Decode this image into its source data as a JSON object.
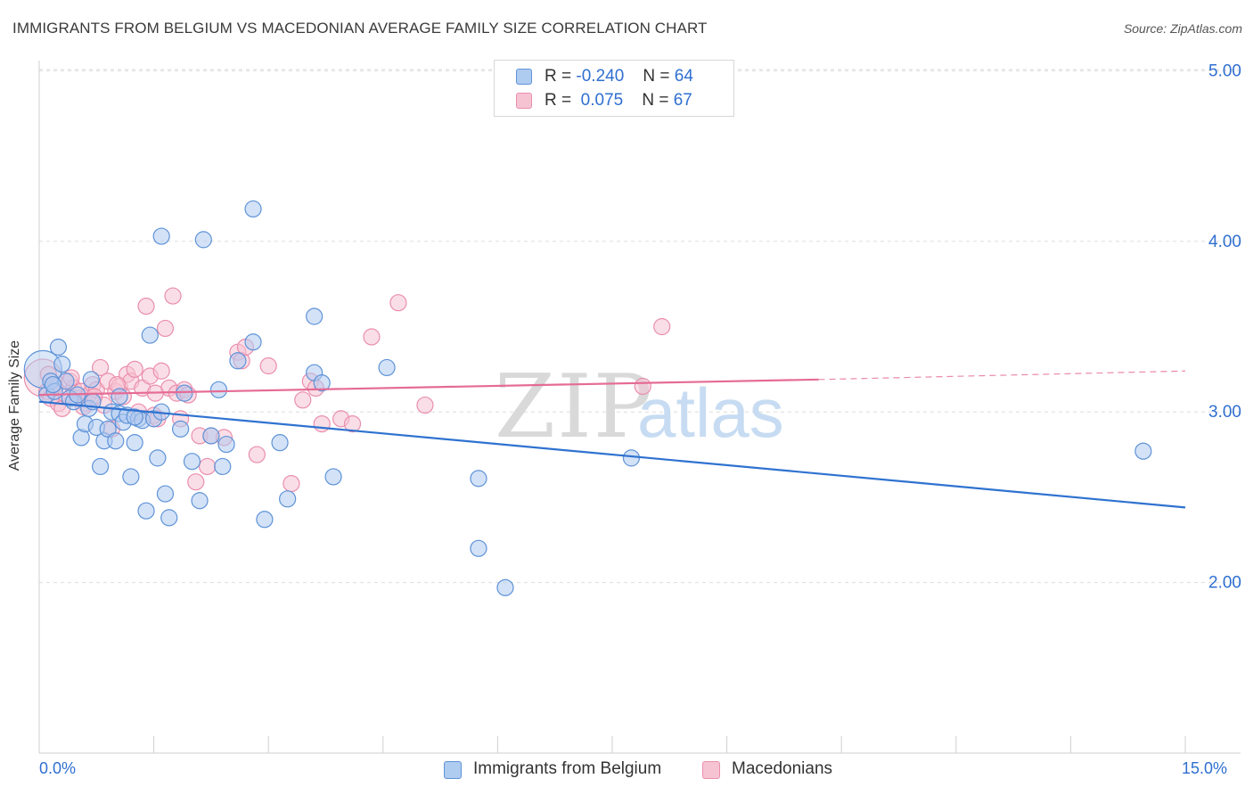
{
  "title": "IMMIGRANTS FROM BELGIUM VS MACEDONIAN AVERAGE FAMILY SIZE CORRELATION CHART",
  "source": "Source: ZipAtlas.com",
  "legend_top": {
    "rows": [
      {
        "r_label": "R =",
        "r_value": "-0.240",
        "n_label": "N =",
        "n_value": "64"
      },
      {
        "r_label": "R =",
        "r_value": " 0.075",
        "n_label": "N =",
        "n_value": "67"
      }
    ]
  },
  "legend_bottom": {
    "items": [
      {
        "label": "Immigrants from Belgium"
      },
      {
        "label": "Macedonians"
      }
    ]
  },
  "colors": {
    "blue_fill": "#aecbf0",
    "blue_stroke": "#5f93d8",
    "blue_line": "#2f72d0",
    "pink_fill": "#f6c3d3",
    "pink_stroke": "#ea8eac",
    "pink_line": "#e56b95",
    "axis_text": "#2f6fd0",
    "grid": "#dddddd"
  },
  "chart_data": {
    "type": "scatter",
    "title": "IMMIGRANTS FROM BELGIUM VS MACEDONIAN AVERAGE FAMILY SIZE CORRELATION CHART",
    "xlabel": "",
    "ylabel": "Average Family Size",
    "xlim": [
      0,
      15
    ],
    "ylim": [
      1.0,
      5.0
    ],
    "x_tick_labels": [
      "0.0%",
      "15.0%"
    ],
    "y_ticks": [
      2.0,
      3.0,
      4.0,
      5.0
    ],
    "y_tick_labels": [
      "2.00",
      "3.00",
      "4.00",
      "5.00"
    ],
    "grid": "horizontal dashed",
    "legend_position": "top-center",
    "series": [
      {
        "name": "Immigrants from Belgium",
        "color": "#5f93d8",
        "R": -0.24,
        "N": 64,
        "trend": {
          "x": [
            0.0,
            15.0
          ],
          "y": [
            3.06,
            2.44
          ]
        },
        "points": [
          [
            0.05,
            3.25
          ],
          [
            0.1,
            3.1
          ],
          [
            0.15,
            3.18
          ],
          [
            0.2,
            3.12
          ],
          [
            0.25,
            3.38
          ],
          [
            0.3,
            3.28
          ],
          [
            0.35,
            3.18
          ],
          [
            0.4,
            3.08
          ],
          [
            0.45,
            3.06
          ],
          [
            0.5,
            3.1
          ],
          [
            0.55,
            2.85
          ],
          [
            0.6,
            2.93
          ],
          [
            0.65,
            3.02
          ],
          [
            0.7,
            3.06
          ],
          [
            0.75,
            2.91
          ],
          [
            0.8,
            2.68
          ],
          [
            0.85,
            2.83
          ],
          [
            0.9,
            2.9
          ],
          [
            0.95,
            3.0
          ],
          [
            1.0,
            2.83
          ],
          [
            1.05,
            2.99
          ],
          [
            1.1,
            2.94
          ],
          [
            1.15,
            2.98
          ],
          [
            1.2,
            2.62
          ],
          [
            1.25,
            2.82
          ],
          [
            1.3,
            2.96
          ],
          [
            1.35,
            2.95
          ],
          [
            1.4,
            2.42
          ],
          [
            1.45,
            3.45
          ],
          [
            1.5,
            2.96
          ],
          [
            1.55,
            2.73
          ],
          [
            1.6,
            3.0
          ],
          [
            1.65,
            2.52
          ],
          [
            1.7,
            2.38
          ],
          [
            1.6,
            4.03
          ],
          [
            1.85,
            2.9
          ],
          [
            1.9,
            3.11
          ],
          [
            2.0,
            2.71
          ],
          [
            2.1,
            2.48
          ],
          [
            2.15,
            4.01
          ],
          [
            2.25,
            2.86
          ],
          [
            2.35,
            3.13
          ],
          [
            2.4,
            2.68
          ],
          [
            2.45,
            2.81
          ],
          [
            2.6,
            3.3
          ],
          [
            2.8,
            4.19
          ],
          [
            2.8,
            3.41
          ],
          [
            2.95,
            2.37
          ],
          [
            3.15,
            2.82
          ],
          [
            3.25,
            2.49
          ],
          [
            3.6,
            3.23
          ],
          [
            3.7,
            3.17
          ],
          [
            3.6,
            3.56
          ],
          [
            3.85,
            2.62
          ],
          [
            4.55,
            3.26
          ],
          [
            5.75,
            2.61
          ],
          [
            5.75,
            2.2
          ],
          [
            6.1,
            1.97
          ],
          [
            7.75,
            2.73
          ],
          [
            14.45,
            2.77
          ],
          [
            0.18,
            3.16
          ],
          [
            0.68,
            3.19
          ],
          [
            1.05,
            3.09
          ],
          [
            1.25,
            2.97
          ]
        ]
      },
      {
        "name": "Macedonians",
        "color": "#ea8eac",
        "R": 0.075,
        "N": 67,
        "trend": {
          "x": [
            0.0,
            10.2
          ],
          "y": [
            3.1,
            3.19
          ]
        },
        "trend_dashed": {
          "x": [
            10.2,
            15.0
          ],
          "y": [
            3.19,
            3.24
          ]
        },
        "points": [
          [
            0.05,
            3.2
          ],
          [
            0.1,
            3.12
          ],
          [
            0.15,
            3.08
          ],
          [
            0.2,
            3.15
          ],
          [
            0.25,
            3.05
          ],
          [
            0.3,
            3.02
          ],
          [
            0.35,
            3.1
          ],
          [
            0.4,
            3.18
          ],
          [
            0.45,
            3.14
          ],
          [
            0.5,
            3.08
          ],
          [
            0.55,
            3.12
          ],
          [
            0.6,
            3.05
          ],
          [
            0.65,
            3.1
          ],
          [
            0.7,
            3.16
          ],
          [
            0.75,
            3.13
          ],
          [
            0.8,
            3.26
          ],
          [
            0.85,
            3.04
          ],
          [
            0.9,
            3.18
          ],
          [
            0.95,
            2.9
          ],
          [
            1.0,
            3.12
          ],
          [
            1.05,
            3.15
          ],
          [
            1.1,
            3.09
          ],
          [
            1.15,
            3.22
          ],
          [
            1.2,
            3.18
          ],
          [
            1.25,
            3.25
          ],
          [
            1.3,
            3.0
          ],
          [
            1.35,
            3.14
          ],
          [
            1.4,
            3.62
          ],
          [
            1.45,
            3.21
          ],
          [
            1.5,
            2.98
          ],
          [
            1.55,
            2.96
          ],
          [
            1.6,
            3.24
          ],
          [
            1.65,
            3.49
          ],
          [
            1.7,
            3.14
          ],
          [
            1.75,
            3.68
          ],
          [
            1.8,
            3.11
          ],
          [
            1.85,
            2.96
          ],
          [
            1.9,
            3.13
          ],
          [
            1.95,
            3.1
          ],
          [
            2.05,
            2.59
          ],
          [
            2.1,
            2.86
          ],
          [
            2.2,
            2.68
          ],
          [
            2.25,
            2.86
          ],
          [
            2.6,
            3.35
          ],
          [
            2.65,
            3.3
          ],
          [
            2.7,
            3.38
          ],
          [
            2.85,
            2.75
          ],
          [
            3.0,
            3.27
          ],
          [
            3.3,
            2.58
          ],
          [
            3.45,
            3.07
          ],
          [
            3.55,
            3.18
          ],
          [
            3.7,
            2.93
          ],
          [
            3.95,
            2.96
          ],
          [
            4.1,
            2.93
          ],
          [
            4.35,
            3.44
          ],
          [
            4.7,
            3.64
          ],
          [
            5.05,
            3.04
          ],
          [
            7.9,
            3.15
          ],
          [
            8.15,
            3.5
          ],
          [
            0.12,
            3.22
          ],
          [
            0.42,
            3.2
          ],
          [
            0.72,
            3.09
          ],
          [
            1.02,
            3.16
          ],
          [
            1.52,
            3.11
          ],
          [
            2.42,
            2.85
          ],
          [
            3.62,
            3.14
          ],
          [
            0.58,
            3.03
          ]
        ]
      }
    ]
  }
}
